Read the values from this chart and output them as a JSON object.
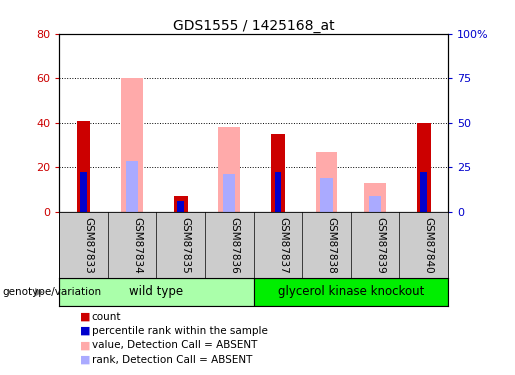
{
  "title": "GDS1555 / 1425168_at",
  "samples": [
    "GSM87833",
    "GSM87834",
    "GSM87835",
    "GSM87836",
    "GSM87837",
    "GSM87838",
    "GSM87839",
    "GSM87840"
  ],
  "count_values": [
    41,
    0,
    7,
    0,
    35,
    0,
    0,
    40
  ],
  "rank_values": [
    18,
    0,
    5,
    0,
    18,
    0,
    0,
    18
  ],
  "absent_value_values": [
    0,
    60,
    0,
    38,
    0,
    27,
    13,
    0
  ],
  "absent_rank_values": [
    0,
    23,
    0,
    17,
    0,
    15,
    7,
    0
  ],
  "count_color": "#cc0000",
  "rank_color": "#0000cc",
  "absent_value_color": "#ffaaaa",
  "absent_rank_color": "#aaaaff",
  "ylim_left": [
    0,
    80
  ],
  "ylim_right": [
    0,
    100
  ],
  "yticks_left": [
    0,
    20,
    40,
    60,
    80
  ],
  "yticks_right": [
    0,
    25,
    50,
    75,
    100
  ],
  "ytick_labels_left": [
    "0",
    "20",
    "40",
    "60",
    "80"
  ],
  "ytick_labels_right": [
    "0",
    "25",
    "50",
    "75",
    "100%"
  ],
  "grid_yticks": [
    20,
    40,
    60
  ],
  "bg_color": "#ffffff",
  "tick_area_color": "#cccccc",
  "wt_color": "#aaffaa",
  "gk_color": "#00ee00",
  "legend_items": [
    {
      "label": "count",
      "color": "#cc0000"
    },
    {
      "label": "percentile rank within the sample",
      "color": "#0000cc"
    },
    {
      "label": "value, Detection Call = ABSENT",
      "color": "#ffaaaa"
    },
    {
      "label": "rank, Detection Call = ABSENT",
      "color": "#aaaaff"
    }
  ]
}
